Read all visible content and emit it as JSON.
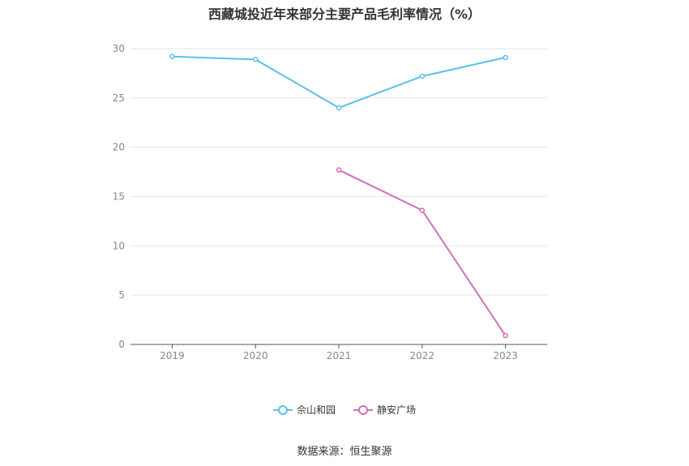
{
  "chart_data": {
    "type": "line",
    "title": "西藏城投近年来部分主要产品毛利率情况（%）",
    "categories": [
      "2019",
      "2020",
      "2021",
      "2022",
      "2023"
    ],
    "yticks": [
      "0",
      "5",
      "10",
      "15",
      "20",
      "25",
      "30"
    ],
    "ylim": [
      0,
      30
    ],
    "grid": true,
    "legend_position": "bottom",
    "series": [
      {
        "name": "佘山和园",
        "color": "#5bc0eb",
        "values": [
          29.2,
          28.9,
          24.0,
          27.2,
          29.1
        ]
      },
      {
        "name": "静安广场",
        "color": "#d36fb4",
        "values": [
          null,
          null,
          17.7,
          13.6,
          0.9
        ]
      }
    ],
    "source": "数据来源：恒生聚源"
  }
}
